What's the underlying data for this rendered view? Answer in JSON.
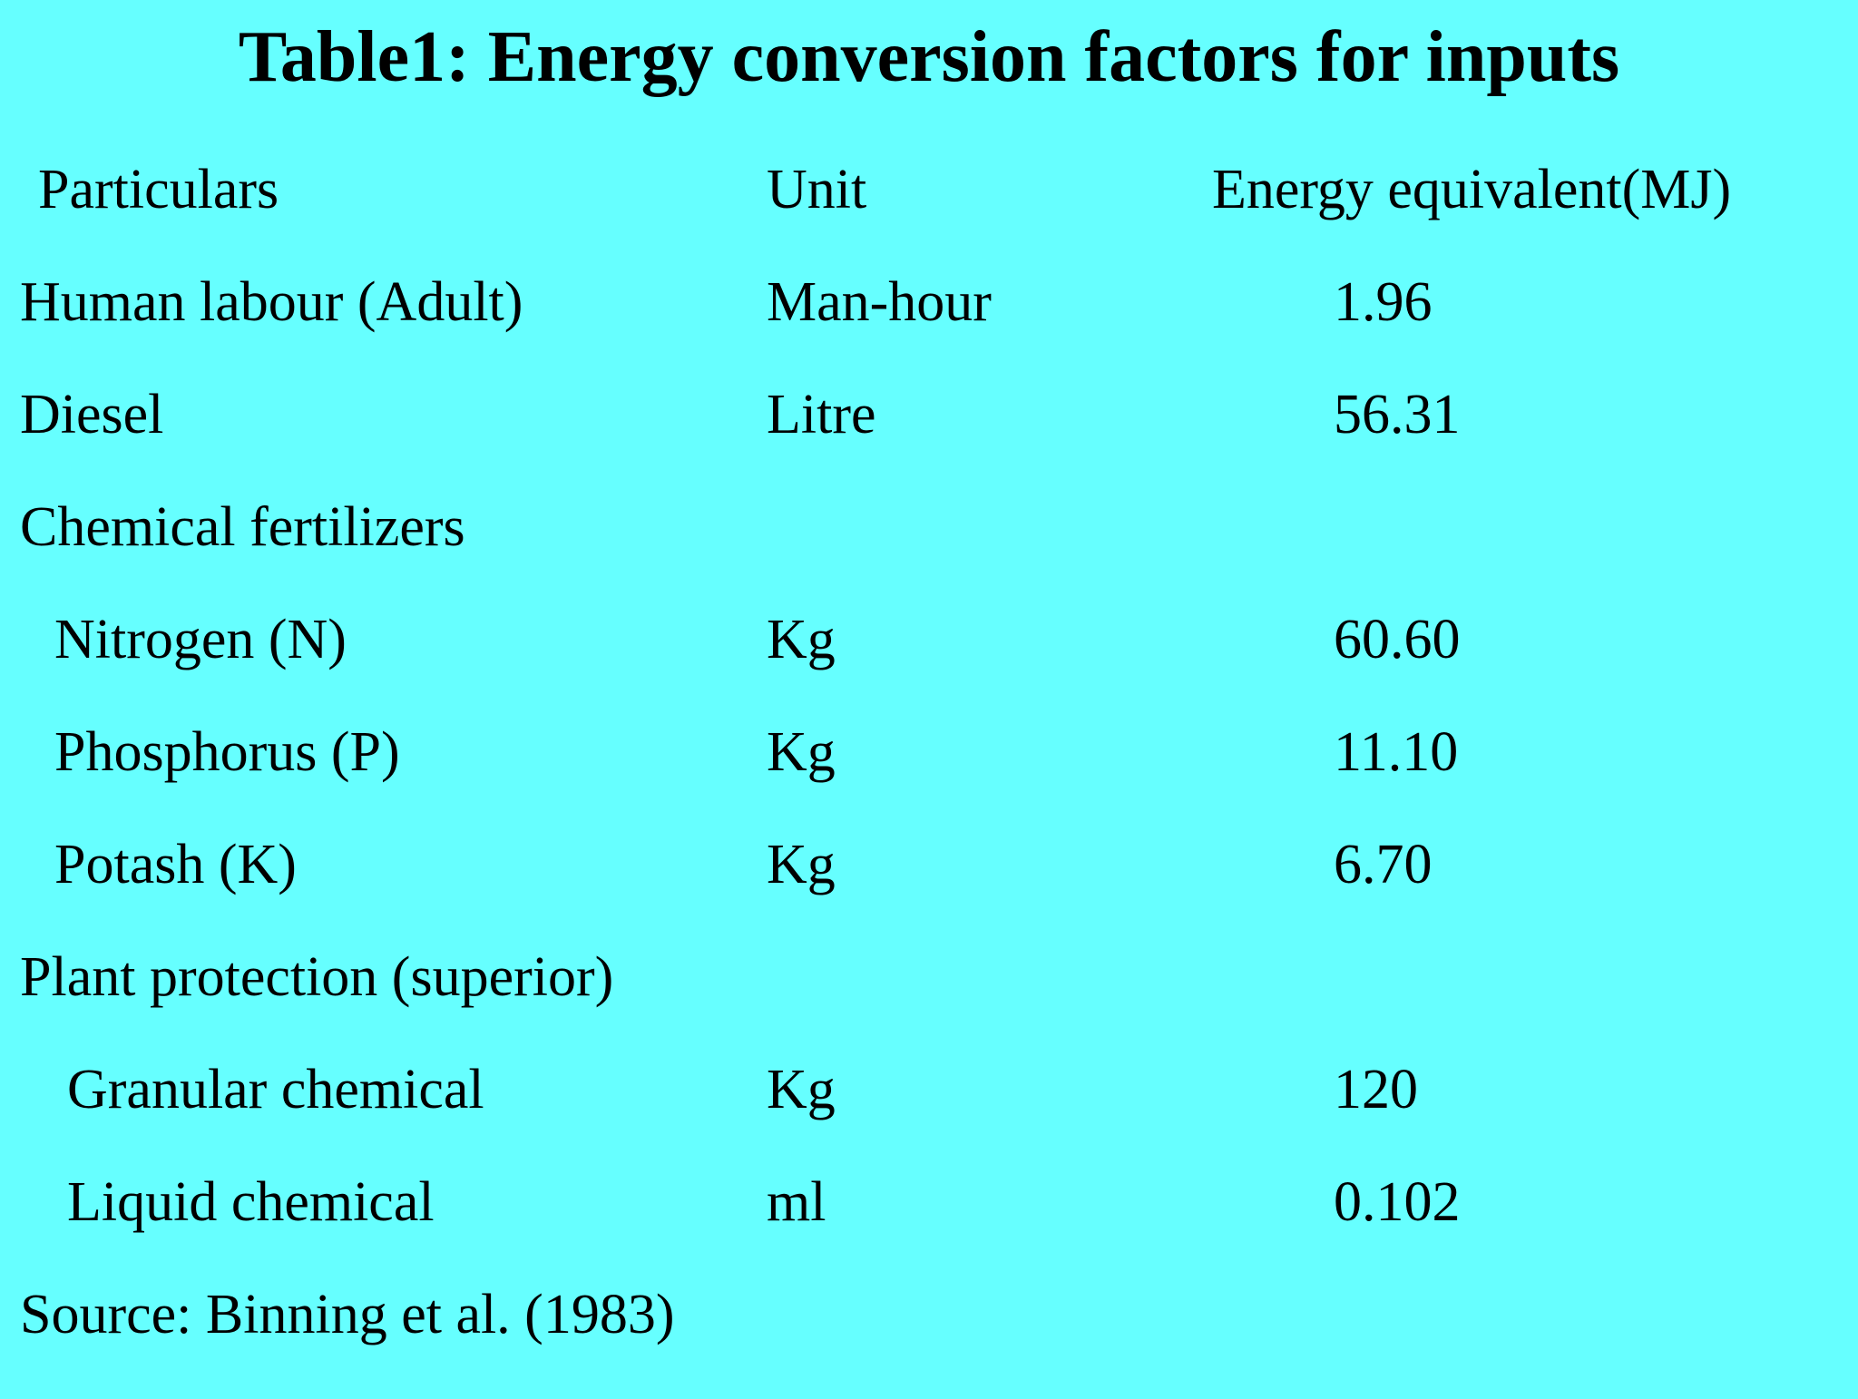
{
  "title": "Table1: Energy conversion factors for inputs",
  "table": {
    "columns": [
      "Particulars",
      "Unit",
      "Energy equivalent(MJ)"
    ],
    "rows": [
      {
        "particulars": "Human labour (Adult)",
        "unit": "Man-hour",
        "energy": "1.96"
      },
      {
        "particulars": "Diesel",
        "unit": "Litre",
        "energy": "56.31"
      },
      {
        "particulars": "Chemical fertilizers",
        "unit": "",
        "energy": ""
      },
      {
        "particulars": "Nitrogen (N)",
        "unit": "Kg",
        "energy": "60.60"
      },
      {
        "particulars": "Phosphorus (P)",
        "unit": "Kg",
        "energy": "11.10"
      },
      {
        "particulars": "Potash (K)",
        "unit": "Kg",
        "energy": "6.70"
      },
      {
        "particulars": "Plant protection (superior)",
        "unit": "",
        "energy": ""
      },
      {
        "particulars": "Granular chemical",
        "unit": "Kg",
        "energy": "120"
      },
      {
        "particulars": "Liquid chemical",
        "unit": "ml",
        "energy": "0.102"
      }
    ],
    "source": "Source: Binning et al. (1983)"
  },
  "colors": {
    "background": "#66FFFF",
    "text": "#000000"
  }
}
